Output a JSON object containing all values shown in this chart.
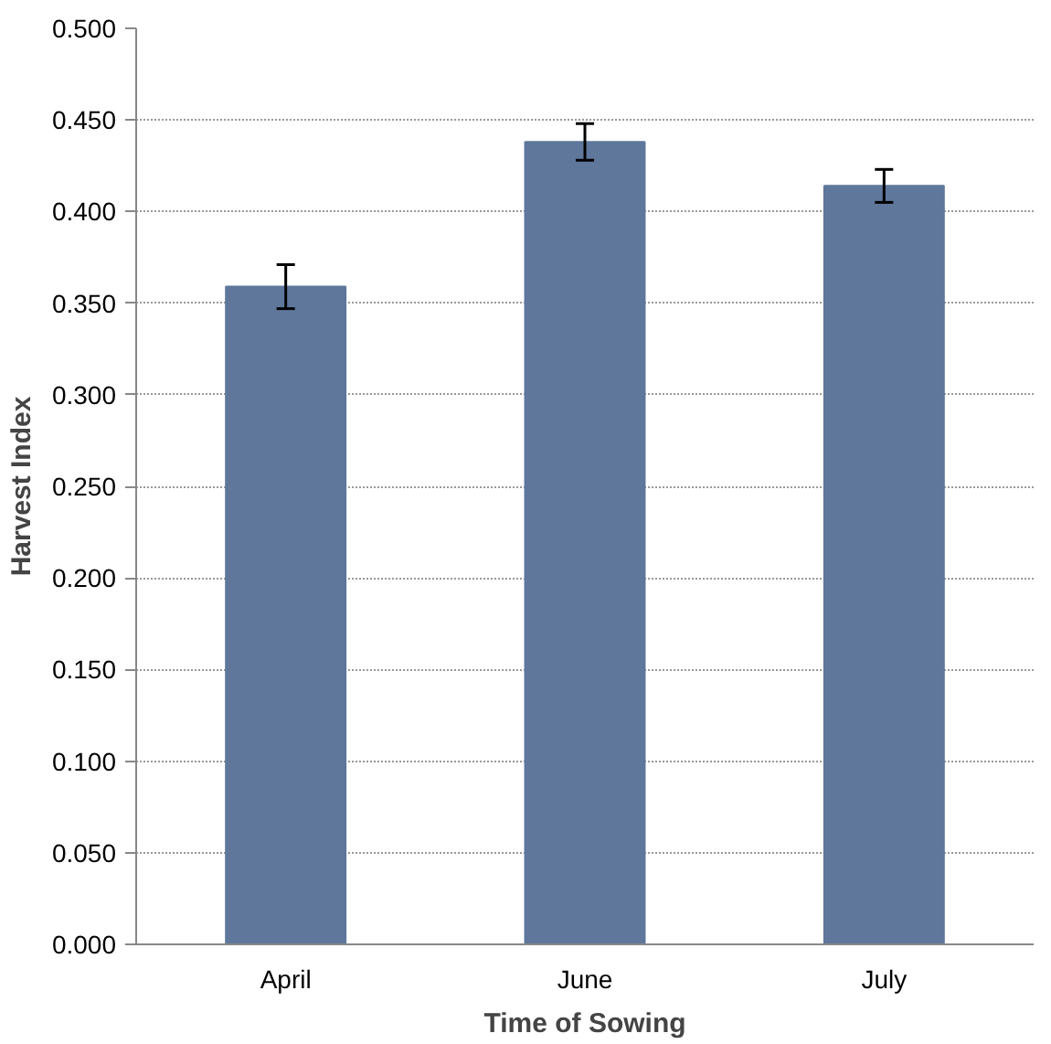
{
  "chart_data": {
    "type": "bar",
    "xlabel": "Time of Sowing",
    "ylabel": "Harvest Index",
    "categories": [
      "April",
      "June",
      "July"
    ],
    "values": [
      0.359,
      0.438,
      0.414
    ],
    "errors": [
      0.012,
      0.01,
      0.009
    ],
    "color": "#5e779b",
    "ylim": [
      0,
      0.5
    ],
    "yticks": [
      {
        "value": 0,
        "label": "0.000"
      },
      {
        "value": 0.05,
        "label": "0.050"
      },
      {
        "value": 0.1,
        "label": "0.100"
      },
      {
        "value": 0.15,
        "label": "0.150"
      },
      {
        "value": 0.2,
        "label": "0.200"
      },
      {
        "value": 0.25,
        "label": "0.250"
      },
      {
        "value": 0.3,
        "label": "0.300"
      },
      {
        "value": 0.35,
        "label": "0.350"
      },
      {
        "value": 0.4,
        "label": "0.400"
      },
      {
        "value": 0.45,
        "label": "0.450"
      },
      {
        "value": 0.5,
        "label": "0.500"
      }
    ],
    "grid": "y"
  }
}
